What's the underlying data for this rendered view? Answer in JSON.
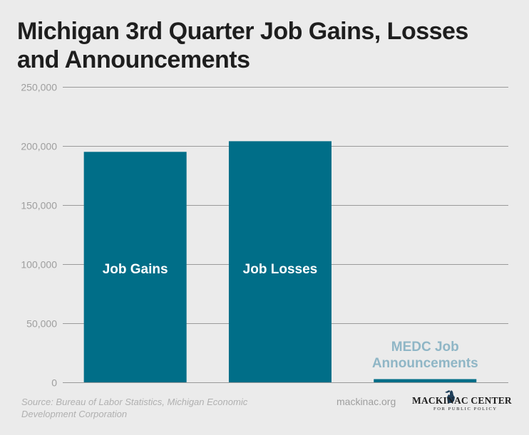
{
  "title": "Michigan 3rd Quarter Job Gains, Losses and Announcements",
  "source": "Source: Bureau of Labor Statistics, Michigan Economic Development Corporation",
  "site": "mackinac.org",
  "logo": {
    "name": "MACKINAC CENTER",
    "subtitle": "FOR PUBLIC POLICY",
    "icon": "michigan-mitten-icon"
  },
  "colors": {
    "background": "#ebebeb",
    "bar": "#006e88",
    "bar_light": "#8fb6c6",
    "grid": "#9a9a9a",
    "tick_text": "#9e9e9e"
  },
  "chart_data": {
    "type": "bar",
    "title": "Michigan 3rd Quarter Job Gains, Losses and Announcements",
    "categories": [
      "Job Gains",
      "Job Losses",
      "MEDC Job Announcements"
    ],
    "category_display": [
      [
        "Job Gains"
      ],
      [
        "Job Losses"
      ],
      [
        "MEDC Job",
        "Announcements"
      ]
    ],
    "values": [
      195000,
      204000,
      2700
    ],
    "ylim": [
      0,
      250000
    ],
    "yticks": [
      0,
      50000,
      100000,
      150000,
      200000,
      250000
    ],
    "ytick_labels": [
      "0",
      "50,000",
      "100,000",
      "150,000",
      "200,000",
      "250,000"
    ],
    "xlabel": "",
    "ylabel": "",
    "grid": true,
    "legend": "none",
    "labels_inside_bars": true
  }
}
